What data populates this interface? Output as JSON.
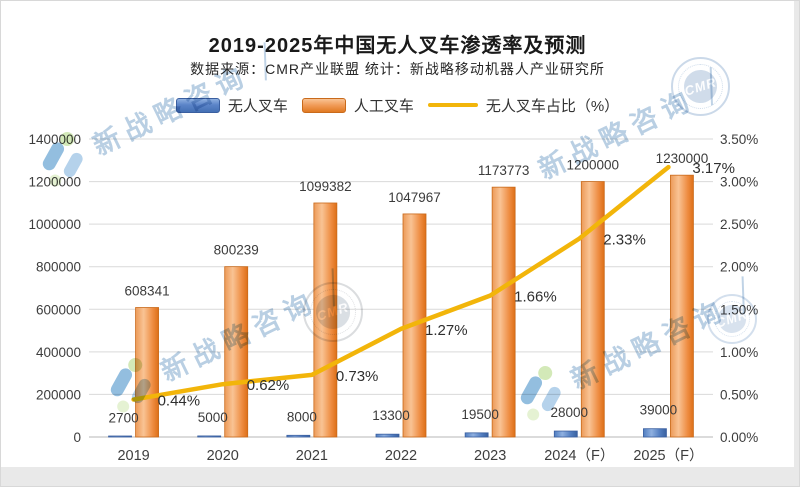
{
  "header": {
    "title": "2019-2025年中国无人叉车渗透率及预测",
    "subtitle": "数据来源：CMR产业联盟 统计：新战略移动机器人产业研究所"
  },
  "legend": {
    "items": [
      "无人叉车",
      "人工叉车",
      "无人叉车占比（%）"
    ]
  },
  "watermark": {
    "text": "新战略咨询",
    "stamp_text": "CMR"
  },
  "colors": {
    "bar_blue": "#4472c4",
    "bar_orange": "#ed7d31",
    "line_gold": "#f2b50a",
    "gridline": "#d9d9d9",
    "axis_text": "#3d3d3d"
  },
  "chart_data": {
    "type": "combo",
    "title": "2019-2025年中国无人叉车渗透率及预测",
    "categories": [
      "2019",
      "2020",
      "2021",
      "2022",
      "2023",
      "2024（F）",
      "2025（F）"
    ],
    "series": [
      {
        "name": "无人叉车",
        "type": "bar",
        "axis": "left",
        "color": "#4472c4",
        "values": [
          2700,
          5000,
          8000,
          13300,
          19500,
          28000,
          39000
        ],
        "labels": [
          "2700",
          "5000",
          "8000",
          "13300",
          "19500",
          "28000",
          "39000"
        ]
      },
      {
        "name": "人工叉车",
        "type": "bar",
        "axis": "left",
        "color": "#ed7d31",
        "values": [
          608341,
          800239,
          1099382,
          1047967,
          1173773,
          1200000,
          1230000
        ],
        "labels": [
          "608341",
          "800239",
          "1099382",
          "1047967",
          "1173773",
          "1200000",
          "1230000"
        ]
      },
      {
        "name": "无人叉车占比（%）",
        "type": "line",
        "axis": "right",
        "color": "#f2b50a",
        "values": [
          0.44,
          0.62,
          0.73,
          1.27,
          1.66,
          2.33,
          3.17
        ],
        "labels": [
          "0.44%",
          "0.62%",
          "0.73%",
          "1.27%",
          "1.66%",
          "2.33%",
          "3.17%"
        ]
      }
    ],
    "left_axis": {
      "min": 0,
      "max": 1400000,
      "ticks": [
        "0",
        "200000",
        "400000",
        "600000",
        "800000",
        "1000000",
        "1200000",
        "1400000"
      ]
    },
    "right_axis": {
      "min": 0,
      "max": 3.5,
      "ticks": [
        "0.00%",
        "0.50%",
        "1.00%",
        "1.50%",
        "2.00%",
        "2.50%",
        "3.00%",
        "3.50%"
      ]
    },
    "grid": true,
    "legend_position": "top"
  }
}
